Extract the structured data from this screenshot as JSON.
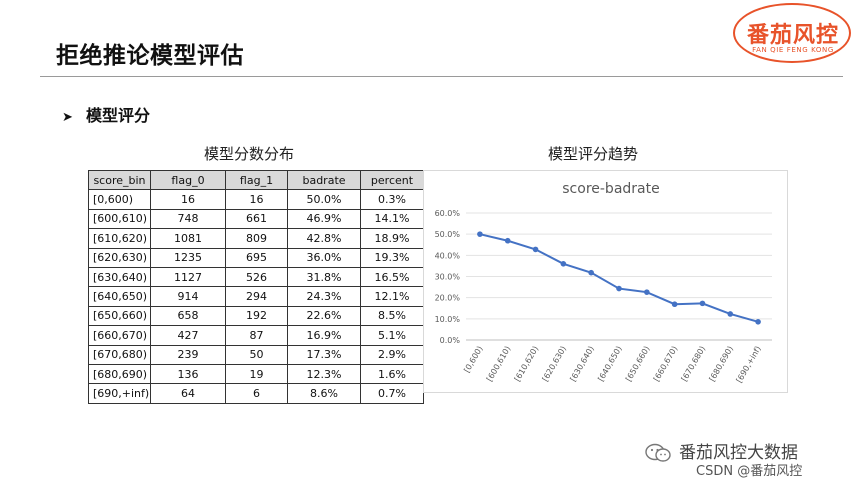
{
  "slide": {
    "title": "拒绝推论模型评估",
    "section": {
      "arrow": "➤",
      "label": "模型评分"
    },
    "table_title": "模型分数分布",
    "chart_title": "模型评分趋势"
  },
  "logo": {
    "main": "番茄风控",
    "sub": "FAN QIE FENG KONG",
    "color": "#e8532a"
  },
  "table": {
    "headers": [
      "score_bin",
      "flag_0",
      "flag_1",
      "badrate",
      "percent"
    ],
    "rows": [
      [
        "[0,600)",
        "16",
        "16",
        "50.0%",
        "0.3%"
      ],
      [
        "[600,610)",
        "748",
        "661",
        "46.9%",
        "14.1%"
      ],
      [
        "[610,620)",
        "1081",
        "809",
        "42.8%",
        "18.9%"
      ],
      [
        "[620,630)",
        "1235",
        "695",
        "36.0%",
        "19.3%"
      ],
      [
        "[630,640)",
        "1127",
        "526",
        "31.8%",
        "16.5%"
      ],
      [
        "[640,650)",
        "914",
        "294",
        "24.3%",
        "12.1%"
      ],
      [
        "[650,660)",
        "658",
        "192",
        "22.6%",
        "8.5%"
      ],
      [
        "[660,670)",
        "427",
        "87",
        "16.9%",
        "5.1%"
      ],
      [
        "[670,680)",
        "239",
        "50",
        "17.3%",
        "2.9%"
      ],
      [
        "[680,690)",
        "136",
        "19",
        "12.3%",
        "1.6%"
      ],
      [
        "[690,+inf)",
        "64",
        "6",
        "8.6%",
        "0.7%"
      ]
    ]
  },
  "chart_data": {
    "type": "line",
    "title": "score-badrate",
    "categories": [
      "[0,600)",
      "[600,610)",
      "[610,620)",
      "[620,630)",
      "[630,640)",
      "[640,650)",
      "[650,660)",
      "[660,670)",
      "[670,680)",
      "[680,690)",
      "[690,+inf)"
    ],
    "series": [
      {
        "values": [
          50.0,
          46.9,
          42.8,
          36.0,
          31.8,
          24.3,
          22.6,
          16.9,
          17.3,
          12.3,
          8.6
        ]
      }
    ],
    "ylim": [
      0,
      60
    ],
    "yticks": [
      "0.0%",
      "10.0%",
      "20.0%",
      "30.0%",
      "40.0%",
      "50.0%",
      "60.0%"
    ],
    "grid": true,
    "line_color": "#4472c4"
  },
  "footer": {
    "wechat_name": "番茄风控大数据",
    "csdn": "CSDN @番茄风控"
  }
}
